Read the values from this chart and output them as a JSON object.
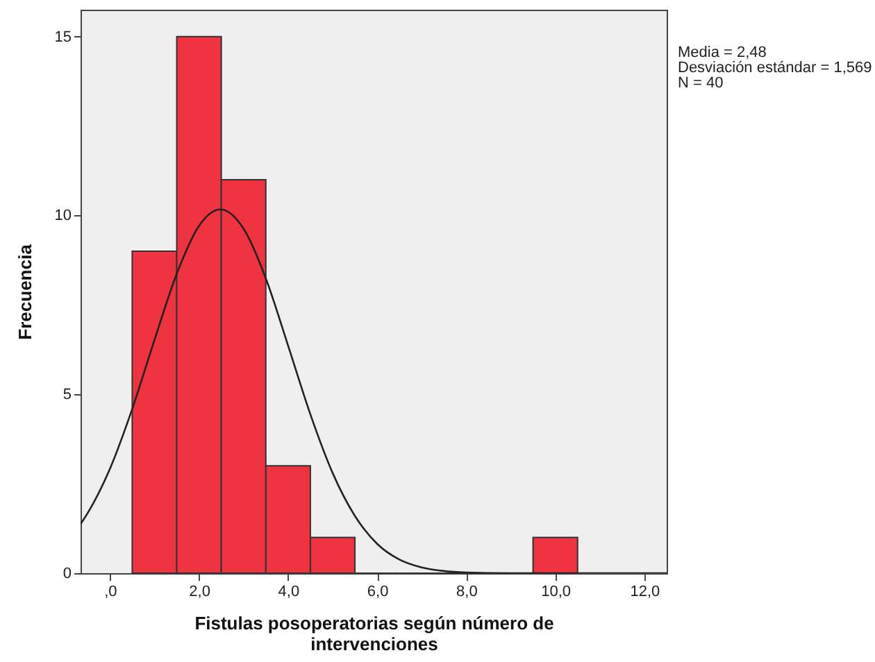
{
  "chart_data": {
    "type": "histogram",
    "xlabel": "Fistulas posoperatorias según número de intervenciones",
    "ylabel": "Frecuencia",
    "bins": [
      0.5,
      1.5,
      2.5,
      3.5,
      4.5,
      5.5,
      6.5,
      7.5,
      8.5,
      9.5,
      10.5
    ],
    "values": [
      9,
      15,
      11,
      3,
      1,
      0,
      0,
      0,
      0,
      1
    ],
    "color": "#ef3340",
    "series": [
      {
        "type": "line",
        "color": "#222222",
        "x": [
          -0.66,
          -0.5,
          0,
          0.5,
          1,
          1.5,
          2,
          2.48,
          3,
          3.5,
          4,
          4.5,
          5,
          5.5,
          6,
          6.5,
          7,
          7.5,
          8,
          9,
          10,
          11,
          12.5
        ],
        "values": [
          1.37,
          1.68,
          2.92,
          4.59,
          6.52,
          8.37,
          9.71,
          10.17,
          9.63,
          8.24,
          6.36,
          4.44,
          2.8,
          1.6,
          0.82,
          0.38,
          0.16,
          0.06,
          0.02,
          0,
          0,
          0,
          0
        ]
      }
    ],
    "xlim": [
      -0.66,
      12.5
    ],
    "ylim": [
      0,
      15.75
    ],
    "xticks": [
      {
        "value": 0,
        "label": ",0"
      },
      {
        "value": 2,
        "label": "2,0"
      },
      {
        "value": 4,
        "label": "4,0"
      },
      {
        "value": 6,
        "label": "6,0"
      },
      {
        "value": 8,
        "label": "8,0"
      },
      {
        "value": 10,
        "label": "10,0"
      },
      {
        "value": 12,
        "label": "12,0"
      }
    ],
    "yticks": [
      0,
      5,
      10,
      15
    ],
    "grid": false,
    "annotations": [
      "Media = 2,48",
      "Desviación estándar = 1,569",
      "N = 40"
    ]
  }
}
